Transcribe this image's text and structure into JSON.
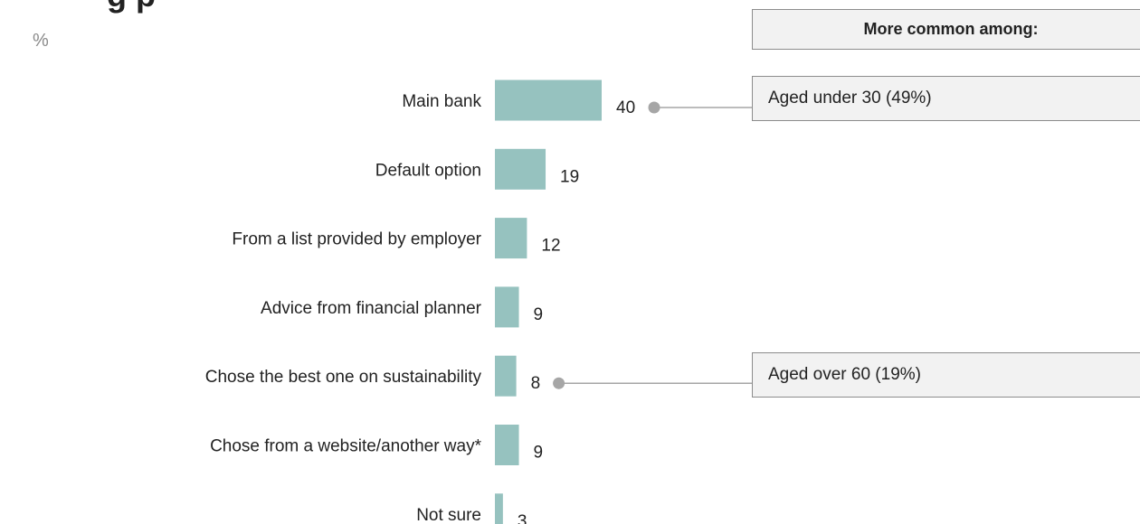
{
  "title": "",
  "unit": "%",
  "callouts": {
    "header": "More common among:",
    "items": [
      {
        "category": "Main bank",
        "text": "Aged under 30 (49%)"
      },
      {
        "category": "Chose the best one on sustainability",
        "text": "Aged over 60 (19%)"
      }
    ]
  },
  "colors": {
    "bar": "#96c2bf",
    "connector": "#a6a6a6",
    "box_bg": "#f2f2f2",
    "box_border": "#8c8c8c"
  },
  "chart_data": {
    "type": "bar",
    "orientation": "horizontal",
    "title": "",
    "xlabel": "",
    "ylabel": "",
    "unit": "%",
    "grid": false,
    "xlim": [
      0,
      40
    ],
    "categories": [
      "Main bank",
      "Default option",
      "From a list provided by employer",
      "Advice from financial planner",
      "Chose the best one on sustainability",
      "Chose from a website/another way*",
      "Not sure"
    ],
    "values": [
      40,
      19,
      12,
      9,
      8,
      9,
      3
    ]
  }
}
